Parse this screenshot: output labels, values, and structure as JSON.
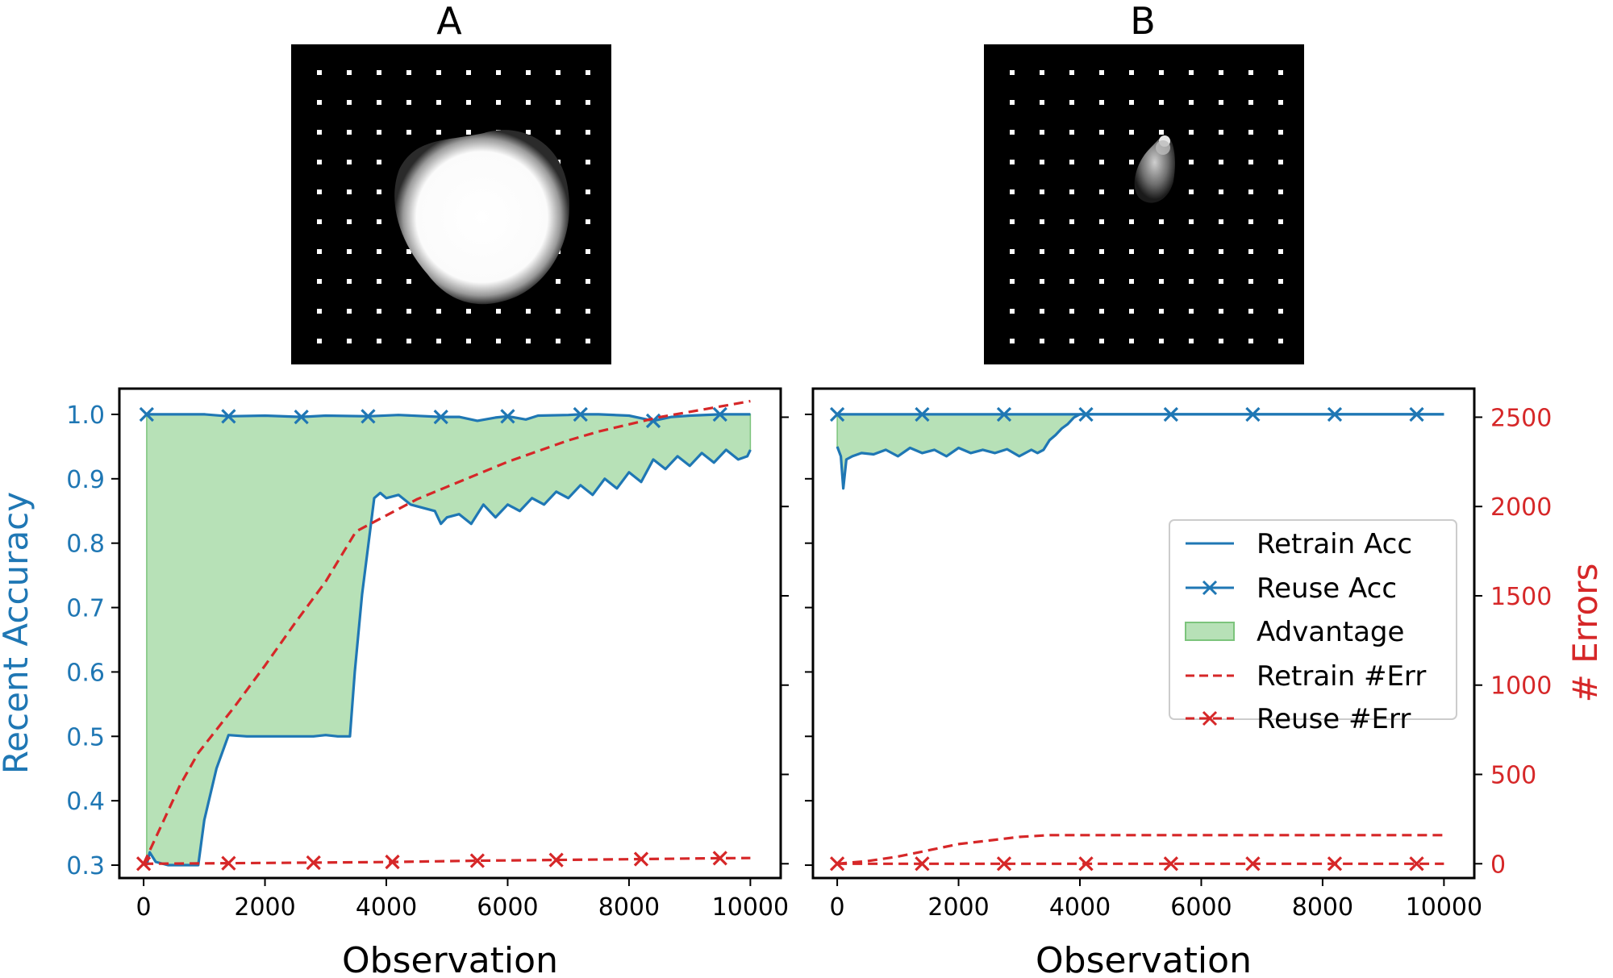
{
  "panels": [
    {
      "label": "A"
    },
    {
      "label": "B"
    }
  ],
  "colors": {
    "retrain_acc": "#1f77b4",
    "reuse_acc": "#1f77b4",
    "advantage_fill": "#b7e1b7",
    "advantage_edge": "#7cc47c",
    "retrain_err": "#d62728",
    "reuse_err": "#d62728",
    "left_axis": "#1f77b4",
    "right_axis": "#d62728"
  },
  "chart_data": [
    {
      "type": "line",
      "panel": "A",
      "xlabel": "Observation",
      "ylabel": "Recent Accuracy",
      "xlim": [
        -400,
        10500
      ],
      "ylim": [
        0.28,
        1.04
      ],
      "y2lim": [
        -80,
        2660
      ],
      "xticks": [
        0,
        2000,
        4000,
        6000,
        8000,
        10000
      ],
      "xtick_labels": [
        "0",
        "2000",
        "4000",
        "6000",
        "8000",
        "10000"
      ],
      "yticks": [
        0.3,
        0.4,
        0.5,
        0.6,
        0.7,
        0.8,
        0.9,
        1.0
      ],
      "ytick_labels": [
        "0.3",
        "0.4",
        "0.5",
        "0.6",
        "0.7",
        "0.8",
        "0.9",
        "1.0"
      ],
      "series": [
        {
          "name": "Retrain Acc",
          "axis": "left",
          "style": "solid",
          "x": [
            50,
            100,
            200,
            400,
            600,
            900,
            1000,
            1200,
            1400,
            1700,
            2000,
            2400,
            2800,
            3000,
            3200,
            3400,
            3480,
            3600,
            3800,
            3900,
            4000,
            4200,
            4400,
            4600,
            4800,
            4900,
            5000,
            5200,
            5400,
            5600,
            5800,
            6000,
            6200,
            6400,
            6600,
            6800,
            7000,
            7200,
            7400,
            7600,
            7800,
            8000,
            8200,
            8400,
            8600,
            8800,
            9000,
            9200,
            9400,
            9600,
            9800,
            9950,
            10000
          ],
          "y": [
            0.3,
            0.32,
            0.305,
            0.3,
            0.3,
            0.3,
            0.37,
            0.45,
            0.502,
            0.5,
            0.5,
            0.5,
            0.5,
            0.502,
            0.5,
            0.5,
            0.6,
            0.72,
            0.87,
            0.878,
            0.87,
            0.875,
            0.86,
            0.855,
            0.85,
            0.83,
            0.84,
            0.845,
            0.83,
            0.86,
            0.84,
            0.86,
            0.85,
            0.87,
            0.86,
            0.88,
            0.87,
            0.89,
            0.875,
            0.9,
            0.885,
            0.91,
            0.895,
            0.93,
            0.915,
            0.935,
            0.92,
            0.94,
            0.925,
            0.945,
            0.93,
            0.935,
            0.945
          ]
        },
        {
          "name": "Reuse Acc",
          "axis": "left",
          "style": "solid-x",
          "x": [
            50,
            1000,
            1400,
            2000,
            2600,
            3000,
            3700,
            4200,
            4900,
            5200,
            5500,
            5800,
            6000,
            6300,
            6500,
            7000,
            7200,
            7500,
            8000,
            8400,
            8700,
            9000,
            9500,
            10000
          ],
          "y": [
            1.0,
            1.0,
            0.997,
            0.998,
            0.996,
            0.998,
            0.997,
            0.999,
            0.996,
            0.996,
            0.99,
            0.995,
            0.997,
            0.992,
            0.998,
            0.999,
            1.0,
            1.0,
            0.998,
            0.99,
            0.996,
            0.998,
            1.0,
            1.0
          ],
          "markers_x": [
            50,
            1400,
            2600,
            3700,
            4900,
            6000,
            7200,
            8400,
            9500
          ]
        },
        {
          "name": "Retrain #Err",
          "axis": "right",
          "style": "dashed",
          "x": [
            0,
            300,
            600,
            900,
            1500,
            2000,
            2500,
            3000,
            3500,
            4000,
            4500,
            5000,
            5500,
            6000,
            6500,
            7000,
            7500,
            8000,
            8500,
            9000,
            9500,
            10000
          ],
          "y": [
            0,
            220,
            440,
            620,
            880,
            1110,
            1350,
            1580,
            1860,
            1950,
            2040,
            2110,
            2180,
            2250,
            2310,
            2370,
            2420,
            2460,
            2500,
            2530,
            2560,
            2590
          ]
        },
        {
          "name": "Reuse #Err",
          "axis": "right",
          "style": "dashed-x",
          "x": [
            0,
            1400,
            2800,
            4100,
            5500,
            6800,
            8200,
            9500,
            10000
          ],
          "y": [
            0,
            3,
            6,
            10,
            17,
            21,
            26,
            31,
            32
          ],
          "markers_x": [
            0,
            1400,
            2800,
            4100,
            5500,
            6800,
            8200,
            9500
          ]
        }
      ],
      "fill": {
        "name": "Advantage",
        "between": [
          "Retrain Acc",
          "Reuse Acc"
        ]
      }
    },
    {
      "type": "line",
      "panel": "B",
      "xlabel": "Observation",
      "ylabel2": "# Errors",
      "xlim": [
        -400,
        10500
      ],
      "ylim": [
        0.28,
        1.04
      ],
      "y2lim": [
        -80,
        2660
      ],
      "xticks": [
        0,
        2000,
        4000,
        6000,
        8000,
        10000
      ],
      "xtick_labels": [
        "0",
        "2000",
        "4000",
        "6000",
        "8000",
        "10000"
      ],
      "y2ticks": [
        0,
        500,
        1000,
        1500,
        2000,
        2500
      ],
      "y2tick_labels": [
        "0",
        "500",
        "1000",
        "1500",
        "2000",
        "2500"
      ],
      "legend": {
        "position": "center-right",
        "entries": [
          "Retrain Acc",
          "Reuse Acc",
          "Advantage",
          "Retrain #Err",
          "Reuse #Err"
        ]
      },
      "series": [
        {
          "name": "Retrain Acc",
          "axis": "left",
          "style": "solid",
          "x": [
            0,
            60,
            100,
            150,
            250,
            400,
            600,
            800,
            1000,
            1200,
            1400,
            1600,
            1800,
            2000,
            2200,
            2400,
            2600,
            2800,
            3000,
            3200,
            3300,
            3400,
            3500,
            3600,
            3700,
            3800,
            3900,
            4000,
            10000
          ],
          "y": [
            0.95,
            0.935,
            0.885,
            0.93,
            0.935,
            0.94,
            0.938,
            0.945,
            0.935,
            0.948,
            0.94,
            0.945,
            0.935,
            0.948,
            0.94,
            0.945,
            0.94,
            0.946,
            0.935,
            0.945,
            0.94,
            0.945,
            0.96,
            0.968,
            0.978,
            0.985,
            0.995,
            1.0,
            1.0
          ]
        },
        {
          "name": "Reuse Acc",
          "axis": "left",
          "style": "solid-x",
          "x": [
            0,
            10000
          ],
          "y": [
            1.0,
            1.0
          ],
          "markers_x": [
            0,
            1400,
            2750,
            4100,
            5500,
            6850,
            8200,
            9550
          ]
        },
        {
          "name": "Retrain #Err",
          "axis": "right",
          "style": "dashed",
          "x": [
            0,
            500,
            1000,
            1500,
            2000,
            2500,
            3000,
            3500,
            4000,
            10000
          ],
          "y": [
            0,
            15,
            40,
            75,
            110,
            130,
            150,
            160,
            160,
            160
          ]
        },
        {
          "name": "Reuse #Err",
          "axis": "right",
          "style": "dashed-x",
          "x": [
            0,
            10000
          ],
          "y": [
            0,
            0
          ],
          "markers_x": [
            0,
            1400,
            2750,
            4100,
            5500,
            6850,
            8200,
            9550
          ]
        }
      ],
      "fill": {
        "name": "Advantage",
        "between": [
          "Retrain Acc",
          "Reuse Acc"
        ]
      }
    }
  ]
}
